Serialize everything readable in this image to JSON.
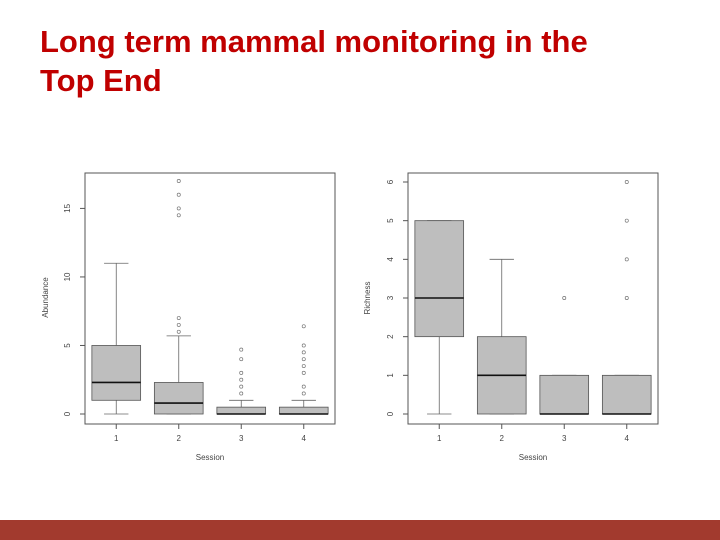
{
  "slide": {
    "title_line1": "Long term mammal monitoring in the",
    "title_line2": "Top End",
    "title_color": "#c00000",
    "footer_color": "#a23a2e"
  },
  "chart_data": [
    {
      "type": "boxplot",
      "xlabel": "Session",
      "ylabel": "Abundance",
      "categories": [
        "1",
        "2",
        "3",
        "4"
      ],
      "yticks": [
        0,
        5,
        10,
        15
      ],
      "ylim": [
        0,
        17
      ],
      "grid": false,
      "box_color": "#bebebe",
      "boxes": [
        {
          "category": "1",
          "whisker_low": 0,
          "q1": 1,
          "median": 2.3,
          "q3": 5,
          "whisker_high": 11,
          "outliers": []
        },
        {
          "category": "2",
          "whisker_low": 0,
          "q1": 0,
          "median": 0.8,
          "q3": 2.3,
          "whisker_high": 5.7,
          "outliers": [
            6,
            6.5,
            7,
            14.5,
            15,
            16,
            17
          ]
        },
        {
          "category": "3",
          "whisker_low": 0,
          "q1": 0,
          "median": 0,
          "q3": 0.5,
          "whisker_high": 1,
          "outliers": [
            1.5,
            2,
            2.5,
            3,
            4,
            4.7
          ]
        },
        {
          "category": "4",
          "whisker_low": 0,
          "q1": 0,
          "median": 0,
          "q3": 0.5,
          "whisker_high": 1,
          "outliers": [
            1.5,
            2,
            3,
            3.5,
            4,
            4.5,
            5,
            6.4
          ]
        }
      ]
    },
    {
      "type": "boxplot",
      "xlabel": "Session",
      "ylabel": "Richness",
      "categories": [
        "1",
        "2",
        "3",
        "4"
      ],
      "yticks": [
        0,
        1,
        2,
        3,
        4,
        5,
        6
      ],
      "ylim": [
        0,
        6
      ],
      "grid": false,
      "box_color": "#bebebe",
      "boxes": [
        {
          "category": "1",
          "whisker_low": 0,
          "q1": 2,
          "median": 3,
          "q3": 5,
          "whisker_high": 5,
          "outliers": []
        },
        {
          "category": "2",
          "whisker_low": 0,
          "q1": 0,
          "median": 1,
          "q3": 2,
          "whisker_high": 4,
          "outliers": []
        },
        {
          "category": "3",
          "whisker_low": 0,
          "q1": 0,
          "median": 0,
          "q3": 1,
          "whisker_high": 1,
          "outliers": [
            3
          ]
        },
        {
          "category": "4",
          "whisker_low": 0,
          "q1": 0,
          "median": 0,
          "q3": 1,
          "whisker_high": 1,
          "outliers": [
            3,
            4,
            5,
            6
          ]
        }
      ]
    }
  ]
}
